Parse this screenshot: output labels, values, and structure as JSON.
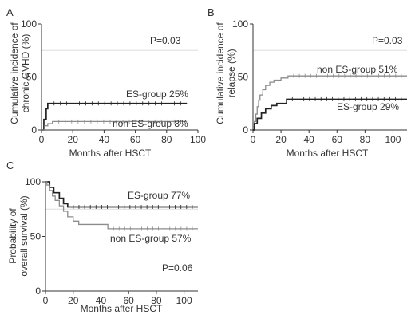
{
  "colors": {
    "es_group": "#222222",
    "non_es_group": "#8c8c8c",
    "axis": "#333333",
    "ref_line": "#dddddd"
  },
  "chart_data": [
    {
      "panel": "A",
      "type": "line",
      "subtype": "cumulative-incidence-step",
      "xlabel": "Months after HSCT",
      "ylabel_lines": [
        "Cumulative incidence of",
        "chronic GVHD (%)"
      ],
      "xlim": [
        0,
        100
      ],
      "ylim": [
        0,
        100
      ],
      "xticks": [
        0,
        20,
        40,
        60,
        80,
        100
      ],
      "yticks": [
        0,
        50,
        100
      ],
      "ref_lines_y": [
        75
      ],
      "p_value_text": "P=0.03",
      "series": [
        {
          "key": "es",
          "label": "ES-group 25%",
          "steps": [
            [
              0,
              0
            ],
            [
              1.5,
              10
            ],
            [
              3,
              20
            ],
            [
              4,
              25
            ],
            [
              93,
              25
            ]
          ]
        },
        {
          "key": "non_es",
          "label": "non ES-group 8%",
          "steps": [
            [
              0,
              0
            ],
            [
              2,
              4
            ],
            [
              4,
              6
            ],
            [
              7,
              8
            ],
            [
              93,
              8
            ]
          ]
        }
      ]
    },
    {
      "panel": "B",
      "type": "line",
      "subtype": "cumulative-incidence-step",
      "xlabel": "Months after HSCT",
      "ylabel_lines": [
        "Cumulative incidence of",
        "relapse (%)"
      ],
      "xlim": [
        0,
        110
      ],
      "ylim": [
        0,
        100
      ],
      "xticks": [
        0,
        20,
        40,
        60,
        80,
        100
      ],
      "yticks": [
        0,
        50,
        100
      ],
      "ref_lines_y": [
        75
      ],
      "p_value_text": "P=0.03",
      "series": [
        {
          "key": "non_es",
          "label": "non ES-group 51%",
          "steps": [
            [
              0,
              0
            ],
            [
              1,
              8
            ],
            [
              2,
              15
            ],
            [
              3,
              22
            ],
            [
              4,
              28
            ],
            [
              5,
              33
            ],
            [
              7,
              38
            ],
            [
              9,
              42
            ],
            [
              12,
              45
            ],
            [
              15,
              47
            ],
            [
              20,
              49
            ],
            [
              25,
              51
            ],
            [
              110,
              51
            ]
          ]
        },
        {
          "key": "es",
          "label": "ES-group 29%",
          "steps": [
            [
              0,
              0
            ],
            [
              1,
              6
            ],
            [
              3,
              11
            ],
            [
              6,
              16
            ],
            [
              9,
              20
            ],
            [
              13,
              23
            ],
            [
              17,
              25
            ],
            [
              24,
              29
            ],
            [
              110,
              29
            ]
          ]
        }
      ]
    },
    {
      "panel": "C",
      "type": "line",
      "subtype": "kaplan-meier-step",
      "xlabel": "Months after HSCT",
      "ylabel_lines": [
        "Probability of",
        "overall survival (%)"
      ],
      "xlim": [
        0,
        110
      ],
      "ylim": [
        0,
        100
      ],
      "xticks": [
        0,
        20,
        40,
        60,
        80,
        100
      ],
      "yticks": [
        0,
        50,
        100
      ],
      "ref_lines_y": [
        75
      ],
      "p_value_text": "P=0.06",
      "series": [
        {
          "key": "es",
          "label": "ES-group 77%",
          "steps": [
            [
              0,
              100
            ],
            [
              3,
              95
            ],
            [
              6,
              90
            ],
            [
              10,
              85
            ],
            [
              13,
              80
            ],
            [
              16,
              77
            ],
            [
              110,
              77
            ]
          ]
        },
        {
          "key": "non_es",
          "label": "non ES-group 57%",
          "steps": [
            [
              0,
              100
            ],
            [
              1,
              97
            ],
            [
              3,
              92
            ],
            [
              5,
              87
            ],
            [
              7,
              83
            ],
            [
              10,
              78
            ],
            [
              13,
              73
            ],
            [
              16,
              68
            ],
            [
              20,
              64
            ],
            [
              24,
              61
            ],
            [
              45,
              57
            ],
            [
              110,
              57
            ]
          ]
        }
      ]
    }
  ]
}
